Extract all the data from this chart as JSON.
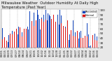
{
  "title": "Milwaukee Weather  Outdoor Humidity At Daily High Temperature (Past Year)",
  "title_fontsize": 3.8,
  "bg_color": "#e8e8e8",
  "plot_bg": "#ffffff",
  "ylim": [
    20,
    102
  ],
  "yticks": [
    20,
    30,
    40,
    50,
    60,
    70,
    80,
    90,
    100
  ],
  "ylabel_fontsize": 3.0,
  "xlabel_fontsize": 2.8,
  "legend_blue": "Recorded",
  "legend_red": "Normal",
  "color_blue": "#1144bb",
  "color_red": "#dd1111",
  "seed": 42,
  "n_days": 365,
  "grid_color": "#aaaaaa",
  "tick_color": "#111111"
}
